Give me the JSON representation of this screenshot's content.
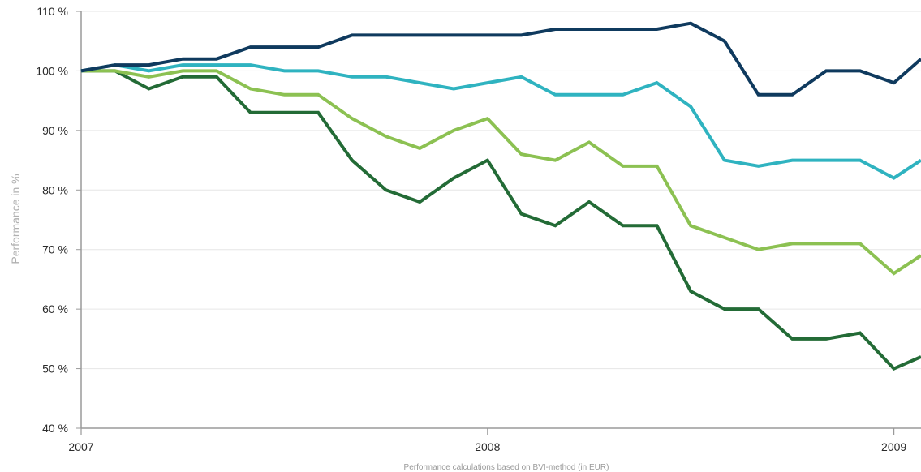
{
  "chart_data": {
    "type": "line",
    "title": "",
    "xlabel": "Performance calculations based on BVI-method (in EUR)",
    "ylabel": "Performance in %",
    "y_unit_suffix": " %",
    "ylim": [
      40,
      110
    ],
    "yticks": [
      40,
      50,
      60,
      70,
      80,
      90,
      100,
      110
    ],
    "xlim": [
      0,
      24.8
    ],
    "x_unit": "months since start of 2007",
    "xticks": [
      {
        "value": 0,
        "label": "2007"
      },
      {
        "value": 12,
        "label": "2008"
      },
      {
        "value": 24,
        "label": "2009"
      }
    ],
    "grid": "horizontal",
    "legend": "none",
    "x": [
      0,
      1,
      2,
      3,
      4,
      5,
      6,
      7,
      8,
      9,
      10,
      11,
      12,
      13,
      14,
      15,
      16,
      17,
      18,
      19,
      20,
      21,
      22,
      23,
      24,
      24.8
    ],
    "series": [
      {
        "color": "#0f3a5e",
        "values": [
          100,
          101,
          101,
          102,
          102,
          104,
          104,
          104,
          106,
          106,
          106,
          106,
          106,
          106,
          107,
          107,
          107,
          107,
          108,
          105,
          96,
          96,
          100,
          100,
          98,
          102
        ]
      },
      {
        "color": "#2fb3c0",
        "values": [
          100,
          101,
          100,
          101,
          101,
          101,
          100,
          100,
          99,
          99,
          98,
          97,
          98,
          99,
          96,
          96,
          96,
          98,
          94,
          85,
          84,
          85,
          85,
          85,
          82,
          85
        ]
      },
      {
        "color": "#8cc152",
        "values": [
          100,
          100,
          99,
          100,
          100,
          97,
          96,
          96,
          92,
          89,
          87,
          90,
          92,
          86,
          85,
          88,
          84,
          84,
          74,
          72,
          70,
          71,
          71,
          71,
          66,
          69
        ]
      },
      {
        "color": "#236b36",
        "values": [
          100,
          100,
          97,
          99,
          99,
          93,
          93,
          93,
          85,
          80,
          78,
          82,
          85,
          76,
          74,
          78,
          74,
          74,
          63,
          60,
          60,
          55,
          55,
          56,
          50,
          52
        ]
      }
    ],
    "axis_color": "#9a9a9a",
    "grid_color": "#e6e6e6"
  }
}
